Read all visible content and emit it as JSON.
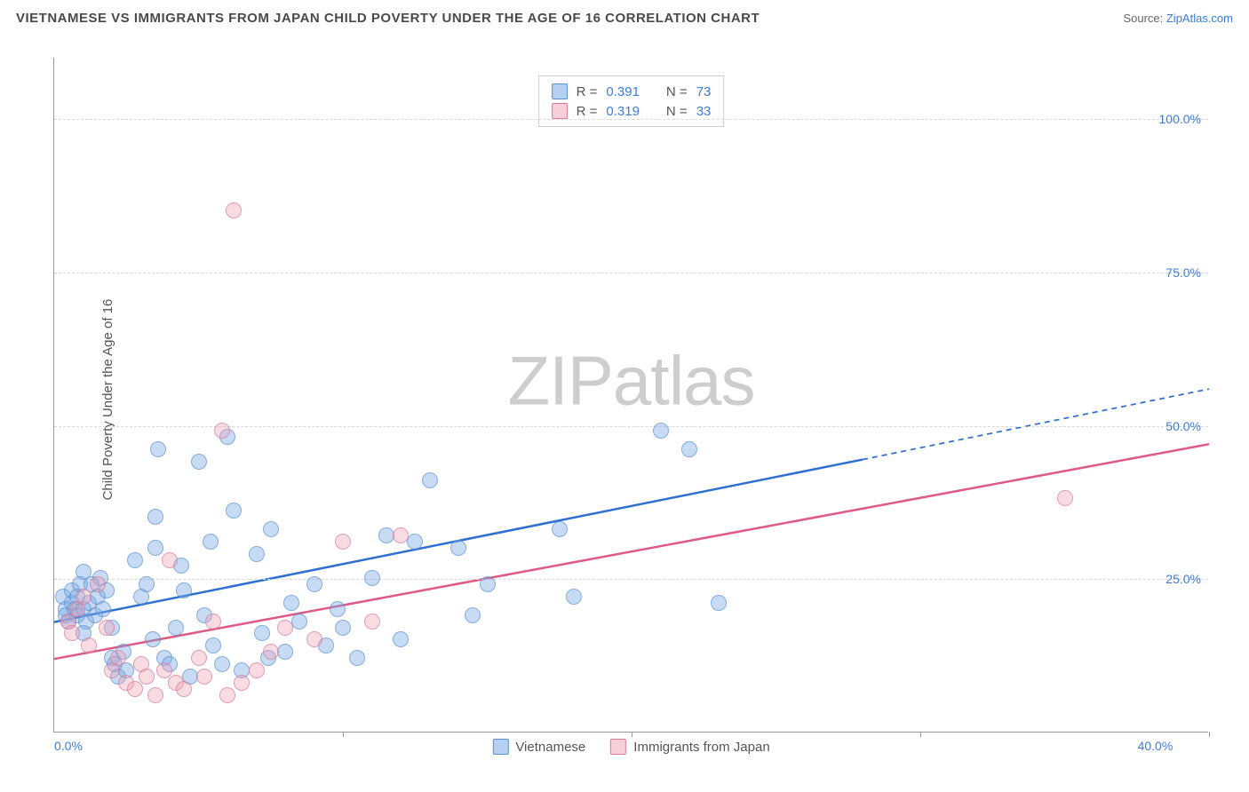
{
  "title": "VIETNAMESE VS IMMIGRANTS FROM JAPAN CHILD POVERTY UNDER THE AGE OF 16 CORRELATION CHART",
  "source_label": "Source: ",
  "source_link": "ZipAtlas.com",
  "ylabel": "Child Poverty Under the Age of 16",
  "watermark_a": "ZIP",
  "watermark_b": "atlas",
  "chart": {
    "type": "scatter",
    "xlim": [
      0,
      40
    ],
    "ylim": [
      0,
      110
    ],
    "y_gridlines": [
      25,
      50,
      75,
      100
    ],
    "y_ticklabels": [
      "25.0%",
      "50.0%",
      "75.0%",
      "100.0%"
    ],
    "x_tickmarks": [
      10,
      20,
      30,
      40
    ],
    "x_start_label": "0.0%",
    "x_end_label": "40.0%",
    "background_color": "#ffffff",
    "grid_color": "#d8d8d8",
    "axis_color": "#999999",
    "tick_label_color": "#3b7dd8",
    "marker_size": 18,
    "series": [
      {
        "name": "Vietnamese",
        "color_fill": "rgba(120,170,230,0.55)",
        "color_stroke": "#5a8fd0",
        "class": "blue",
        "r": "0.391",
        "n": "73",
        "trend": {
          "x0": 0,
          "y0": 18,
          "x_solid_end": 28,
          "y_solid_end": 44.5,
          "x1": 40,
          "y1": 56,
          "stroke": "#2e6fd1",
          "width": 2.5
        },
        "points": [
          [
            0.3,
            22
          ],
          [
            0.4,
            20
          ],
          [
            0.4,
            19
          ],
          [
            0.5,
            18
          ],
          [
            0.6,
            21
          ],
          [
            0.6,
            23
          ],
          [
            0.7,
            20
          ],
          [
            0.8,
            19
          ],
          [
            0.8,
            22
          ],
          [
            0.9,
            24
          ],
          [
            1.0,
            20
          ],
          [
            1.0,
            26
          ],
          [
            1.1,
            18
          ],
          [
            1.2,
            21
          ],
          [
            1.3,
            24
          ],
          [
            1.4,
            19
          ],
          [
            1.5,
            22
          ],
          [
            1.6,
            25
          ],
          [
            1.7,
            20
          ],
          [
            1.8,
            23
          ],
          [
            2.0,
            12
          ],
          [
            2.1,
            11
          ],
          [
            2.2,
            9
          ],
          [
            2.4,
            13
          ],
          [
            2.5,
            10
          ],
          [
            2.8,
            28
          ],
          [
            3.0,
            22
          ],
          [
            3.2,
            24
          ],
          [
            3.4,
            15
          ],
          [
            3.5,
            30
          ],
          [
            3.6,
            46
          ],
          [
            3.8,
            12
          ],
          [
            4.0,
            11
          ],
          [
            4.2,
            17
          ],
          [
            4.4,
            27
          ],
          [
            4.5,
            23
          ],
          [
            4.7,
            9
          ],
          [
            5.0,
            44
          ],
          [
            5.2,
            19
          ],
          [
            5.4,
            31
          ],
          [
            5.5,
            14
          ],
          [
            5.8,
            11
          ],
          [
            6.0,
            48
          ],
          [
            6.2,
            36
          ],
          [
            6.5,
            10
          ],
          [
            7.0,
            29
          ],
          [
            7.2,
            16
          ],
          [
            7.4,
            12
          ],
          [
            7.5,
            33
          ],
          [
            8.0,
            13
          ],
          [
            8.2,
            21
          ],
          [
            8.5,
            18
          ],
          [
            9.0,
            24
          ],
          [
            9.4,
            14
          ],
          [
            9.8,
            20
          ],
          [
            10.0,
            17
          ],
          [
            10.5,
            12
          ],
          [
            11.0,
            25
          ],
          [
            11.5,
            32
          ],
          [
            12.0,
            15
          ],
          [
            12.5,
            31
          ],
          [
            13.0,
            41
          ],
          [
            14.0,
            30
          ],
          [
            14.5,
            19
          ],
          [
            15.0,
            24
          ],
          [
            17.5,
            33
          ],
          [
            18.0,
            22
          ],
          [
            21.0,
            49
          ],
          [
            22.0,
            46
          ],
          [
            23.0,
            21
          ],
          [
            1.0,
            16
          ],
          [
            2.0,
            17
          ],
          [
            3.5,
            35
          ]
        ]
      },
      {
        "name": "Immigrants from Japan",
        "color_fill": "rgba(240,160,180,0.5)",
        "color_stroke": "#d87a9a",
        "class": "pink",
        "r": "0.319",
        "n": "33",
        "trend": {
          "x0": 0,
          "y0": 12,
          "x_solid_end": 40,
          "y_solid_end": 47,
          "x1": 40,
          "y1": 47,
          "stroke": "#e05a85",
          "width": 2.5
        },
        "points": [
          [
            0.5,
            18
          ],
          [
            0.6,
            16
          ],
          [
            0.8,
            20
          ],
          [
            1.0,
            22
          ],
          [
            1.2,
            14
          ],
          [
            1.5,
            24
          ],
          [
            1.8,
            17
          ],
          [
            2.0,
            10
          ],
          [
            2.2,
            12
          ],
          [
            2.5,
            8
          ],
          [
            2.8,
            7
          ],
          [
            3.0,
            11
          ],
          [
            3.2,
            9
          ],
          [
            3.5,
            6
          ],
          [
            3.8,
            10
          ],
          [
            4.0,
            28
          ],
          [
            4.2,
            8
          ],
          [
            4.5,
            7
          ],
          [
            5.0,
            12
          ],
          [
            5.2,
            9
          ],
          [
            5.5,
            18
          ],
          [
            5.8,
            49
          ],
          [
            6.0,
            6
          ],
          [
            6.5,
            8
          ],
          [
            7.0,
            10
          ],
          [
            7.5,
            13
          ],
          [
            8.0,
            17
          ],
          [
            9.0,
            15
          ],
          [
            10.0,
            31
          ],
          [
            11.0,
            18
          ],
          [
            12.0,
            32
          ],
          [
            6.2,
            85
          ],
          [
            35.0,
            38
          ]
        ]
      }
    ]
  },
  "stats_legend": {
    "r_label": "R =",
    "n_label": "N ="
  },
  "bottom_legend": [
    "Vietnamese",
    "Immigrants from Japan"
  ]
}
